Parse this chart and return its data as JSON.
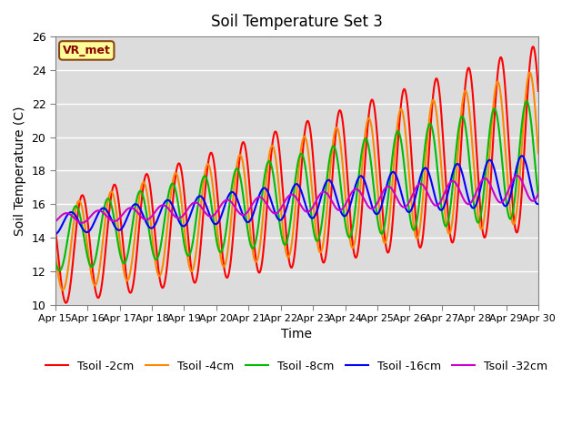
{
  "title": "Soil Temperature Set 3",
  "xlabel": "Time",
  "ylabel": "Soil Temperature (C)",
  "ylim": [
    10,
    26
  ],
  "xlim": [
    0,
    15
  ],
  "xtick_labels": [
    "Apr 15",
    "Apr 16",
    "Apr 17",
    "Apr 18",
    "Apr 19",
    "Apr 20",
    "Apr 21",
    "Apr 22",
    "Apr 23",
    "Apr 24",
    "Apr 25",
    "Apr 26",
    "Apr 27",
    "Apr 28",
    "Apr 29",
    "Apr 30"
  ],
  "bg_color": "#dcdcdc",
  "fig_color": "#ffffff",
  "lines": [
    {
      "label": "Tsoil -2cm",
      "color": "#ff0000"
    },
    {
      "label": "Tsoil -4cm",
      "color": "#ff8800"
    },
    {
      "label": "Tsoil -8cm",
      "color": "#00bb00"
    },
    {
      "label": "Tsoil -16cm",
      "color": "#0000ff"
    },
    {
      "label": "Tsoil -32cm",
      "color": "#cc00cc"
    }
  ],
  "vr_met_label": "VR_met",
  "vr_met_bg": "#ffff99",
  "vr_met_border": "#8b4513",
  "params": [
    {
      "trend_s": 13.0,
      "trend_e": 20.0,
      "amp_s": 3.0,
      "amp_e": 5.5,
      "phase": 0.0,
      "lw": 1.5
    },
    {
      "trend_s": 13.3,
      "trend_e": 19.5,
      "amp_s": 2.5,
      "amp_e": 4.5,
      "phase": 0.1,
      "lw": 1.5
    },
    {
      "trend_s": 13.8,
      "trend_e": 18.8,
      "amp_s": 1.8,
      "amp_e": 3.5,
      "phase": 0.2,
      "lw": 1.5
    },
    {
      "trend_s": 14.8,
      "trend_e": 17.5,
      "amp_s": 0.6,
      "amp_e": 1.5,
      "phase": 0.35,
      "lw": 1.5
    },
    {
      "trend_s": 15.1,
      "trend_e": 17.0,
      "amp_s": 0.3,
      "amp_e": 0.8,
      "phase": 0.5,
      "lw": 1.5
    }
  ]
}
